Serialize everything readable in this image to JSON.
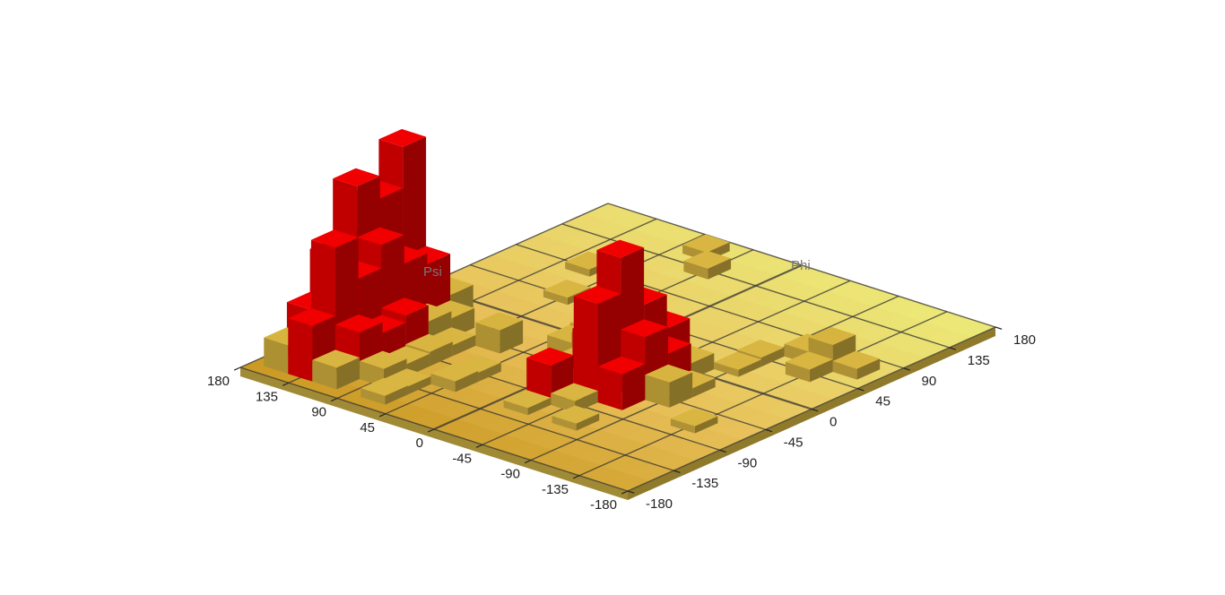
{
  "chart_data": {
    "type": "histogram3d",
    "xlabel": "Phi",
    "ylabel": "Psi",
    "x_ticks": [
      "-180",
      "-135",
      "-90",
      "-45",
      "0",
      "45",
      "90",
      "135",
      "180"
    ],
    "y_ticks": [
      "-180",
      "-135",
      "-90",
      "-45",
      "0",
      "45",
      "90",
      "135",
      "180"
    ],
    "xlim": [
      -180,
      180
    ],
    "ylim": [
      -180,
      180
    ],
    "bin_width": 22.5,
    "colors": {
      "floor": "#ece878",
      "floor_mid": "#e8c05a",
      "floor_dark": "#c8961e",
      "bar_low": "#d4b23a",
      "bar_high": "#f00000",
      "grid": "#333333"
    },
    "bars": [
      {
        "phi": -157.5,
        "psi": 157.5,
        "h": 32
      },
      {
        "phi": -157.5,
        "psi": 135.0,
        "h": 62
      },
      {
        "phi": -157.5,
        "psi": 112.5,
        "h": 24
      },
      {
        "phi": -135.0,
        "psi": 157.5,
        "h": 60
      },
      {
        "phi": -135.0,
        "psi": 135.0,
        "h": 138
      },
      {
        "phi": -135.0,
        "psi": 112.5,
        "h": 52
      },
      {
        "phi": -135.0,
        "psi": 90.0,
        "h": 20
      },
      {
        "phi": -112.5,
        "psi": 157.5,
        "h": 108
      },
      {
        "phi": -112.5,
        "psi": 135.0,
        "h": 92
      },
      {
        "phi": -112.5,
        "psi": 112.5,
        "h": 40
      },
      {
        "phi": -112.5,
        "psi": 90.0,
        "h": 14
      },
      {
        "phi": -90.0,
        "psi": 157.5,
        "h": 175
      },
      {
        "phi": -90.0,
        "psi": 135.0,
        "h": 118
      },
      {
        "phi": -90.0,
        "psi": 112.5,
        "h": 48
      },
      {
        "phi": -90.0,
        "psi": 90.0,
        "h": 16
      },
      {
        "phi": -67.5,
        "psi": 157.5,
        "h": 150
      },
      {
        "phi": -67.5,
        "psi": 135.0,
        "h": 86
      },
      {
        "phi": -67.5,
        "psi": 112.5,
        "h": 30
      },
      {
        "phi": -67.5,
        "psi": 90.0,
        "h": 12
      },
      {
        "phi": -45.0,
        "psi": 157.5,
        "h": 196
      },
      {
        "phi": -45.0,
        "psi": 135.0,
        "h": 74
      },
      {
        "phi": -45.0,
        "psi": 112.5,
        "h": 22
      },
      {
        "phi": -22.5,
        "psi": 157.5,
        "h": 44
      },
      {
        "phi": -22.5,
        "psi": 135.0,
        "h": 28
      },
      {
        "phi": -157.5,
        "psi": 67.5,
        "h": 10
      },
      {
        "phi": -135.0,
        "psi": 67.5,
        "h": 9
      },
      {
        "phi": -112.5,
        "psi": 45.0,
        "h": 12
      },
      {
        "phi": -90.0,
        "psi": 45.0,
        "h": 10
      },
      {
        "phi": -45.0,
        "psi": 67.5,
        "h": 26
      },
      {
        "phi": -67.5,
        "psi": -22.5,
        "h": 10
      },
      {
        "phi": -90.0,
        "psi": -45.0,
        "h": 13
      },
      {
        "phi": -112.5,
        "psi": -67.5,
        "h": 8
      },
      {
        "phi": -67.5,
        "psi": -135.0,
        "h": 8
      },
      {
        "phi": -22.5,
        "psi": 22.5,
        "h": 18
      },
      {
        "phi": -22.5,
        "psi": 0.0,
        "h": 30
      },
      {
        "phi": 0.0,
        "psi": 22.5,
        "h": 20
      },
      {
        "phi": -112.5,
        "psi": -22.5,
        "h": 8
      },
      {
        "phi": -90.0,
        "psi": -22.5,
        "h": 44
      },
      {
        "phi": -67.5,
        "psi": -45.0,
        "h": 110
      },
      {
        "phi": -67.5,
        "psi": -67.5,
        "h": 40
      },
      {
        "phi": -45.0,
        "psi": -22.5,
        "h": 54
      },
      {
        "phi": -45.0,
        "psi": -45.0,
        "h": 150
      },
      {
        "phi": -45.0,
        "psi": -67.5,
        "h": 70
      },
      {
        "phi": -22.5,
        "psi": -45.0,
        "h": 86
      },
      {
        "phi": -22.5,
        "psi": -67.5,
        "h": 40
      },
      {
        "phi": 0.0,
        "psi": -45.0,
        "h": 48
      },
      {
        "phi": 0.0,
        "psi": -67.5,
        "h": 18
      },
      {
        "phi": -45.0,
        "psi": -90.0,
        "h": 28
      },
      {
        "phi": -22.5,
        "psi": -90.0,
        "h": 10
      },
      {
        "phi": -45.0,
        "psi": 0.0,
        "h": 12
      },
      {
        "phi": 22.5,
        "psi": -90.0,
        "h": 8
      },
      {
        "phi": 45.0,
        "psi": -135.0,
        "h": 14
      },
      {
        "phi": 67.5,
        "psi": -112.5,
        "h": 14
      },
      {
        "phi": 67.5,
        "psi": -135.0,
        "h": 30
      },
      {
        "phi": 67.5,
        "psi": -157.5,
        "h": 12
      },
      {
        "phi": 45.0,
        "psi": -90.0,
        "h": 10
      },
      {
        "phi": 135.0,
        "psi": 45.0,
        "h": 12
      },
      {
        "phi": 157.5,
        "psi": 67.5,
        "h": 10
      },
      {
        "phi": 45.0,
        "psi": 90.0,
        "h": 8
      },
      {
        "phi": 90.0,
        "psi": 112.5,
        "h": 8
      }
    ]
  }
}
